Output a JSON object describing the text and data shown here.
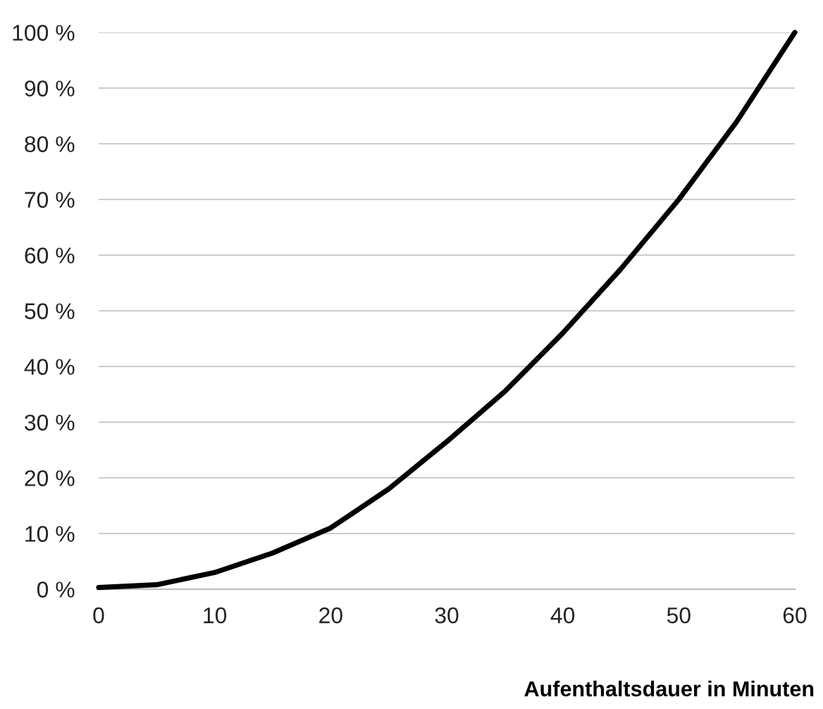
{
  "chart_data": {
    "type": "line",
    "xlabel": "Aufenthaltsdauer in Minuten",
    "x": [
      0,
      5,
      10,
      15,
      20,
      25,
      30,
      35,
      40,
      45,
      50,
      55,
      60
    ],
    "series": [
      {
        "color": "#000000",
        "values": [
          0.3,
          0.8,
          3,
          6.5,
          11,
          18,
          26.5,
          35.5,
          46,
          57.5,
          70,
          84,
          100
        ]
      }
    ],
    "xlim": [
      0,
      60
    ],
    "xticks": [
      0,
      10,
      20,
      30,
      40,
      50,
      60
    ],
    "ylim": [
      0,
      100
    ],
    "yticks": [
      {
        "value": 0,
        "label": "0 %"
      },
      {
        "value": 10,
        "label": "10 %"
      },
      {
        "value": 20,
        "label": "20 %"
      },
      {
        "value": 30,
        "label": "30 %"
      },
      {
        "value": 40,
        "label": "40 %"
      },
      {
        "value": 50,
        "label": "50 %"
      },
      {
        "value": 60,
        "label": "60 %"
      },
      {
        "value": 70,
        "label": "70 %"
      },
      {
        "value": 80,
        "label": "80 %"
      },
      {
        "value": 90,
        "label": "90 %"
      },
      {
        "value": 100,
        "label": "100 %"
      }
    ],
    "grid": "y",
    "marker": "none",
    "line_style": "solid"
  }
}
